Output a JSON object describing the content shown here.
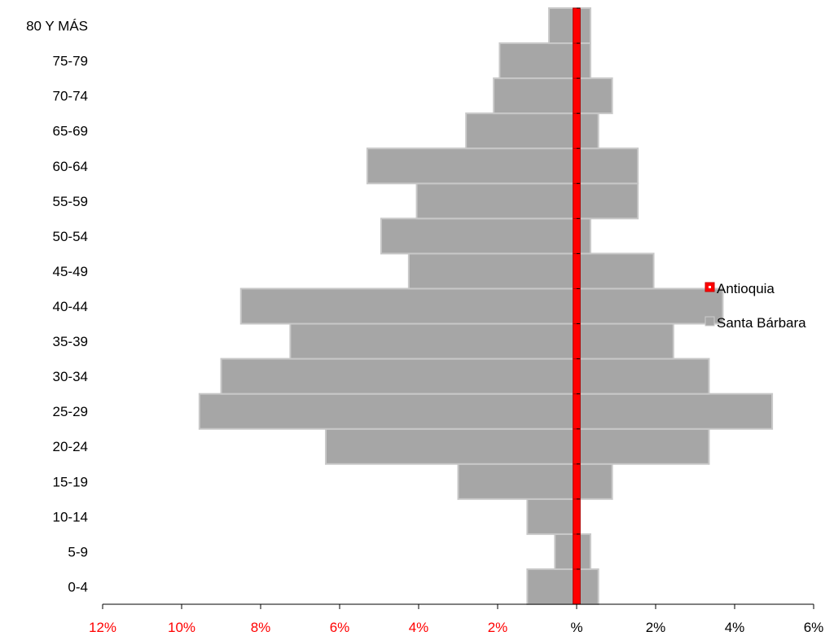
{
  "chart_data": {
    "type": "bar",
    "orientation": "horizontal",
    "subtype": "population-pyramid",
    "categories": [
      "0-4",
      "5-9",
      "10-14",
      "15-19",
      "20-24",
      "25-29",
      "30-34",
      "35-39",
      "40-44",
      "45-49",
      "50-54",
      "55-59",
      "60-64",
      "65-69",
      "70-74",
      "75-79",
      "80 Y MÁS"
    ],
    "series": [
      {
        "name": "Santa Bárbara",
        "color": "#a6a6a6",
        "left_values": [
          1.25,
          0.55,
          1.25,
          3.0,
          6.35,
          9.55,
          9.0,
          7.25,
          8.5,
          4.25,
          4.95,
          4.05,
          5.3,
          2.8,
          2.1,
          1.95,
          0.7
        ],
        "right_values": [
          0.55,
          0.35,
          0.05,
          0.9,
          3.35,
          4.95,
          3.35,
          2.45,
          3.7,
          1.95,
          0.35,
          1.55,
          1.55,
          0.55,
          0.9,
          0.35,
          0.35
        ]
      },
      {
        "name": "Antioquia",
        "color": "#ff0000",
        "left_values": [
          0.07,
          0.07,
          0.07,
          0.07,
          0.07,
          0.07,
          0.07,
          0.07,
          0.07,
          0.07,
          0.07,
          0.07,
          0.07,
          0.07,
          0.07,
          0.07,
          0.07
        ],
        "right_values": [
          0.07,
          0.07,
          0.07,
          0.07,
          0.07,
          0.07,
          0.07,
          0.07,
          0.07,
          0.07,
          0.07,
          0.07,
          0.07,
          0.07,
          0.07,
          0.07,
          0.07
        ]
      }
    ],
    "xlim": [
      -12,
      6
    ],
    "xticks": [
      {
        "value": -12,
        "label": "12%",
        "color": "#ff0000"
      },
      {
        "value": -10,
        "label": "10%",
        "color": "#ff0000"
      },
      {
        "value": -8,
        "label": "8%",
        "color": "#ff0000"
      },
      {
        "value": -6,
        "label": "6%",
        "color": "#ff0000"
      },
      {
        "value": -4,
        "label": "4%",
        "color": "#ff0000"
      },
      {
        "value": -2,
        "label": "2%",
        "color": "#ff0000"
      },
      {
        "value": 0,
        "label": "%",
        "color": "#000000"
      },
      {
        "value": 2,
        "label": "2%",
        "color": "#000000"
      },
      {
        "value": 4,
        "label": "4%",
        "color": "#000000"
      },
      {
        "value": 6,
        "label": "6%",
        "color": "#000000"
      }
    ],
    "grid": false,
    "legend": {
      "position": "right",
      "entries": [
        {
          "label": "Antioquia",
          "color": "#ff0000"
        },
        {
          "label": "Santa Bárbara",
          "color": "#a6a6a6"
        }
      ]
    }
  }
}
